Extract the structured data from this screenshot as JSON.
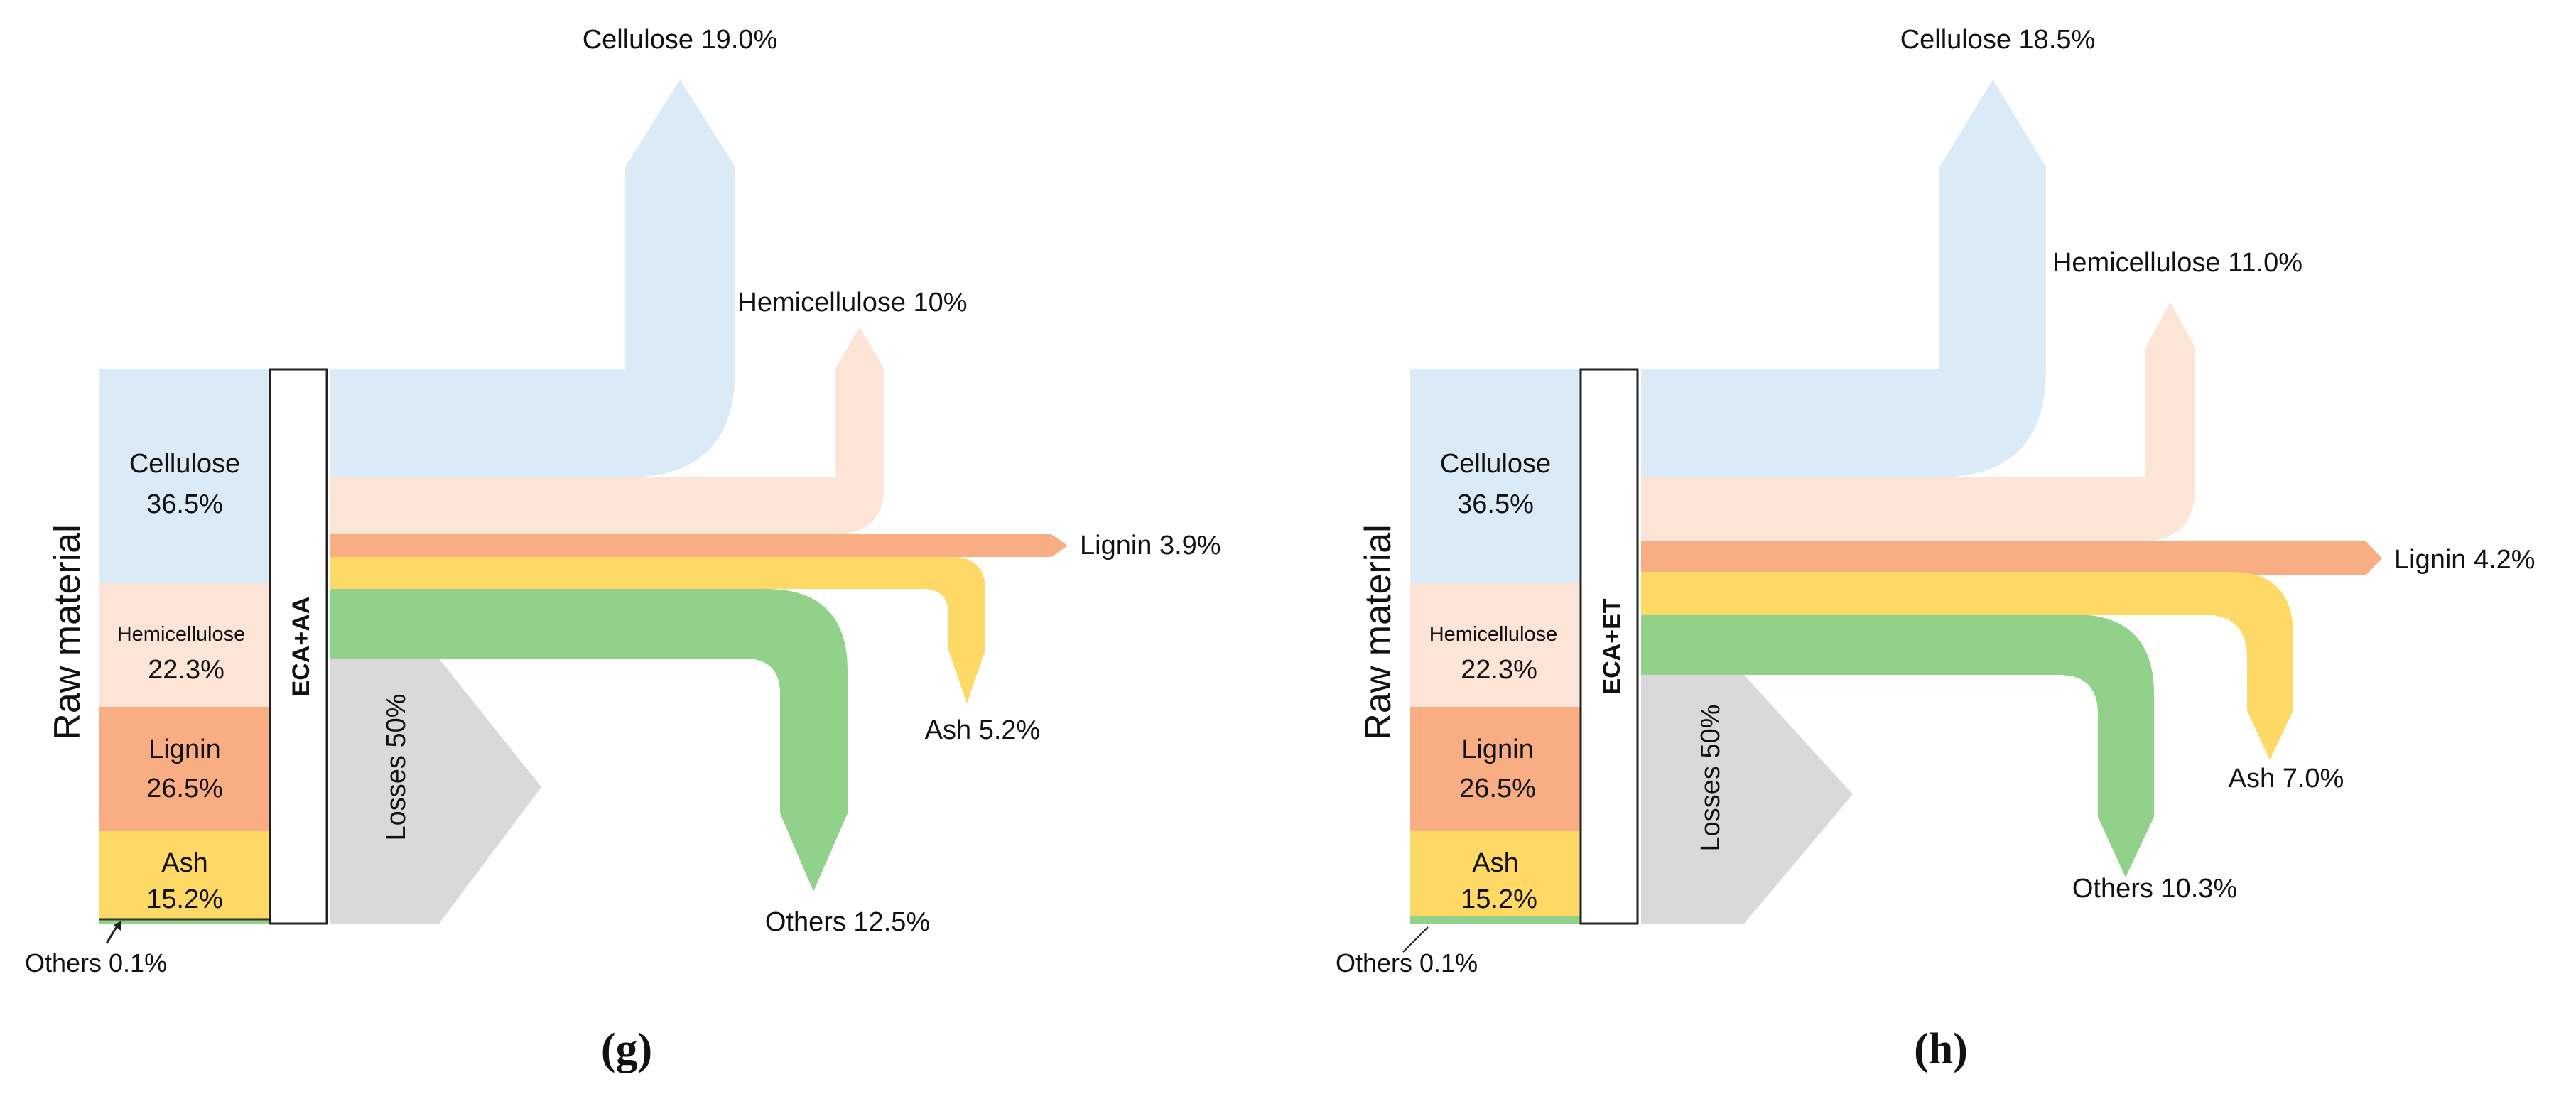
{
  "colors": {
    "cellulose": "#dbeaf7",
    "hemicellulose": "#fce4d6",
    "lignin": "#f8ad82",
    "ash": "#ffd966",
    "others": "#92d18a",
    "losses": "#d9d9d9"
  },
  "panels": [
    {
      "caption": "(g)",
      "axis_label": "Raw material",
      "process_label": "ECA+AA",
      "inputs": [
        {
          "name": "Cellulose",
          "value": "36.5%"
        },
        {
          "name": "Hemicellulose",
          "value": "22.3%"
        },
        {
          "name": "Lignin",
          "value": "26.5%"
        },
        {
          "name": "Ash",
          "value": "15.2%"
        },
        {
          "name": "Others",
          "label": "Others 0.1%"
        }
      ],
      "outputs": {
        "cellulose": "Cellulose 19.0%",
        "hemicellulose": "Hemicellulose 10%",
        "lignin": "Lignin 3.9%",
        "ash": "Ash 5.2%",
        "others": "Others 12.5%",
        "losses": "Losses 50%"
      }
    },
    {
      "caption": "(h)",
      "axis_label": "Raw material",
      "process_label": "ECA+ET",
      "inputs": [
        {
          "name": "Cellulose",
          "value": "36.5%"
        },
        {
          "name": "Hemicellulose",
          "value": "22.3%"
        },
        {
          "name": "Lignin",
          "value": "26.5%"
        },
        {
          "name": "Ash",
          "value": "15.2%"
        },
        {
          "name": "Others",
          "label": "Others 0.1%"
        }
      ],
      "outputs": {
        "cellulose": "Cellulose 18.5%",
        "hemicellulose": "Hemicellulose 11.0%",
        "lignin": "Lignin 4.2%",
        "ash": "Ash 7.0%",
        "others": "Others 10.3%",
        "losses": "Losses 50%"
      }
    }
  ]
}
